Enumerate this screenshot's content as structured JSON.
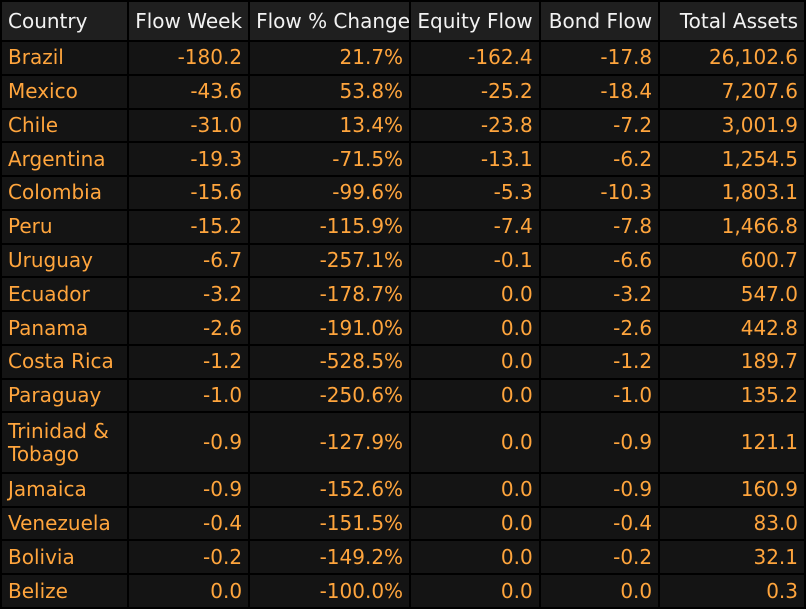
{
  "chart_data": {
    "type": "table",
    "columns": [
      "Country",
      "Flow Week",
      "Flow % Change",
      "Equity Flow",
      "Bond Flow",
      "Total Assets"
    ],
    "rows": [
      [
        "Brazil",
        "-180.2",
        "21.7%",
        "-162.4",
        "-17.8",
        "26,102.6"
      ],
      [
        "Mexico",
        "-43.6",
        "53.8%",
        "-25.2",
        "-18.4",
        "7,207.6"
      ],
      [
        "Chile",
        "-31.0",
        "13.4%",
        "-23.8",
        "-7.2",
        "3,001.9"
      ],
      [
        "Argentina",
        "-19.3",
        "-71.5%",
        "-13.1",
        "-6.2",
        "1,254.5"
      ],
      [
        "Colombia",
        "-15.6",
        "-99.6%",
        "-5.3",
        "-10.3",
        "1,803.1"
      ],
      [
        "Peru",
        "-15.2",
        "-115.9%",
        "-7.4",
        "-7.8",
        "1,466.8"
      ],
      [
        "Uruguay",
        "-6.7",
        "-257.1%",
        "-0.1",
        "-6.6",
        "600.7"
      ],
      [
        "Ecuador",
        "-3.2",
        "-178.7%",
        "0.0",
        "-3.2",
        "547.0"
      ],
      [
        "Panama",
        "-2.6",
        "-191.0%",
        "0.0",
        "-2.6",
        "442.8"
      ],
      [
        "Costa Rica",
        "-1.2",
        "-528.5%",
        "0.0",
        "-1.2",
        "189.7"
      ],
      [
        "Paraguay",
        "-1.0",
        "-250.6%",
        "0.0",
        "-1.0",
        "135.2"
      ],
      [
        "Trinidad & Tobago",
        "-0.9",
        "-127.9%",
        "0.0",
        "-0.9",
        "121.1"
      ],
      [
        "Jamaica",
        "-0.9",
        "-152.6%",
        "0.0",
        "-0.9",
        "160.9"
      ],
      [
        "Venezuela",
        "-0.4",
        "-151.5%",
        "0.0",
        "-0.4",
        "83.0"
      ],
      [
        "Bolivia",
        "-0.2",
        "-149.2%",
        "0.0",
        "-0.2",
        "32.1"
      ],
      [
        "Belize",
        "0.0",
        "-100.0%",
        "0.0",
        "0.0",
        "0.3"
      ]
    ]
  },
  "colors": {
    "background": "#000000",
    "header_cell": "#1f1f1f",
    "header_text": "#f2f2f2",
    "body_cell": "#141414",
    "value_text": "#ffa53d"
  }
}
